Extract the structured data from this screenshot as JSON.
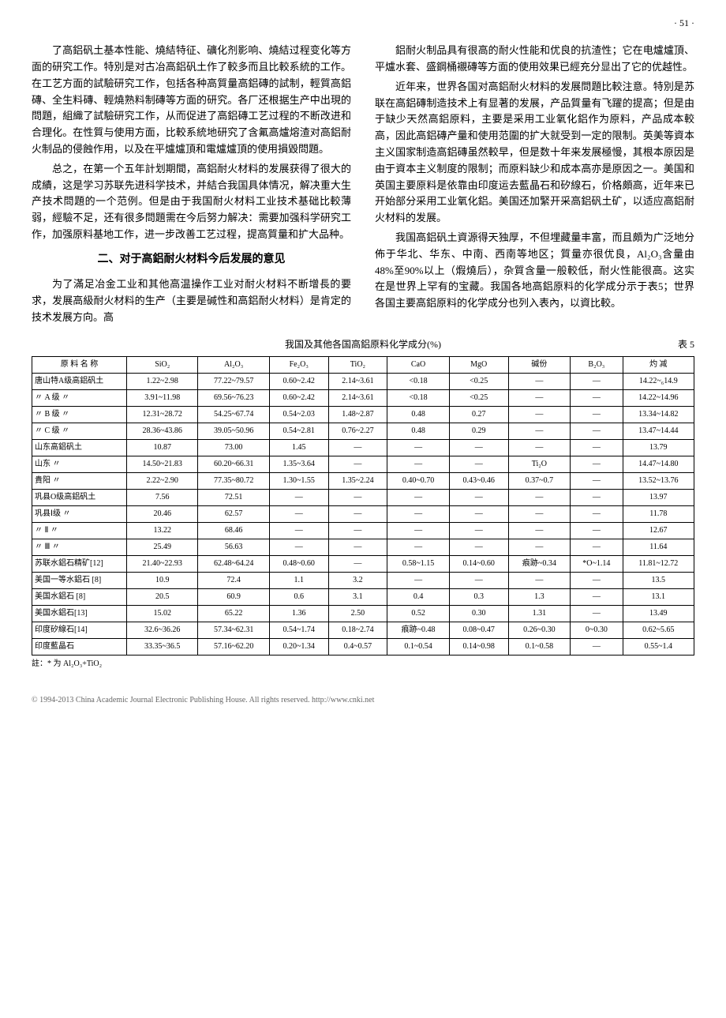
{
  "page_number": "· 51 ·",
  "left_paras": [
    "了高鋁矾土基本性能、燒結特征、礦化剂影响、燒結过程变化等方面的研究工作。特別是对古冶高鋁矾土作了較多而且比較系統的工作。在工艺方面的試驗研究工作，包括各种高質量高鋁磚的試制，輕質高鋁磚、全生料磚、輕燒熟料制磚等方面的研究。各厂还根据生产中出現的問題，組織了試驗研究工作，从而促进了高鋁磚工艺过程的不断改进和合理化。在性質与使用方面，比較系統地研究了含氟高爐熔渣对高鋁耐火制品的侵蝕作用，以及在平爐爐頂和電爐爐頂的使用損毀問題。",
    "总之，在第一个五年計划期間，高鋁耐火材料的发展获得了很大的成績，这是学习苏联先进科学技术，并結合我国具体情况，解决重大生产技术問題的一个范例。但是由于我国耐火材料工业技术基础比較薄弱，經驗不足，还有很多問題需在今后努力解决：需要加强科学研究工作，加强原料基地工作，进一步改善工艺过程，提高質量和扩大品种。"
  ],
  "section2_heading": "二、对于高鋁耐火材料今后发展的意见",
  "left_paras2": [
    "为了滿足冶金工业和其他高温操作工业对耐火材料不断增長的要求，发展高級耐火材料的生产（主要是碱性和高鋁耐火材料）是肯定的技术发展方向。高"
  ],
  "right_paras": [
    "鋁耐火制品具有很高的耐火性能和优良的抗渣性；它在电爐爐頂、平爐水套、盛鋼桶襯磚等方面的使用效果已經充分显出了它的优越性。",
    "近年来，世界各国对高鋁耐火材料的发展問題比較注意。特別是苏联在高鋁磚制造技术上有显著的发展，产品質量有飞躍的提高；但是由于缺少天然高鋁原料，主要是采用工业氧化鋁作为原料，产品成本較高，因此高鋁磚产量和使用范圍的扩大就受到一定的限制。英美等資本主义国家制造高鋁磚虽然較早，但是数十年来发展極慢，其根本原因是由于資本主义制度的限制；而原料缺少和成本高亦是原因之一。美国和英国主要原料是依靠由印度运去藍晶石和矽線石，价格頗高，近年来已开始部分采用工业氧化鋁。美国还加緊开采高鋁矾土矿，以适应高鋁耐火材料的发展。",
    "我国高鋁矾土資源得天独厚，不但埋藏量丰富，而且頗为广泛地分佈于华北、华东、中南、西南等地区；質量亦很优良，Al₂O₃含量由48%至90%以上（煆燒后），杂質含量一般較低，耐火性能很高。这实在是世界上罕有的宝藏。我国各地高鋁原料的化学成分示于表5；世界各国主要高鋁原料的化学成分也列入表內，以資比較。"
  ],
  "table_caption": "我国及其他各国高鋁原料化学成分(%)",
  "table_number": "表 5",
  "table": {
    "headers": [
      "原 料 名 称",
      "SiO₂",
      "Al₂O₃",
      "Fe₂O₃",
      "TiO₂",
      "CaO",
      "MgO",
      "碱份",
      "B₂O₃",
      "灼 减"
    ],
    "rows": [
      [
        "唐山特A级高鋁矾土",
        "1.22~2.98",
        "77.22~79.57",
        "0.60~2.42",
        "2.14~3.61",
        "<0.18",
        "<0.25",
        "—",
        "—",
        "14.22~₆14.9"
      ],
      [
        "〃 A 级 〃",
        "3.91~11.98",
        "69.56~76.23",
        "0.60~2.42",
        "2.14~3.61",
        "<0.18",
        "<0.25",
        "—",
        "—",
        "14.22~14.96"
      ],
      [
        "〃 B 级 〃",
        "12.31~28.72",
        "54.25~67.74",
        "0.54~2.03",
        "1.48~2.87",
        "0.48",
        "0.27",
        "—",
        "—",
        "13.34~14.82"
      ],
      [
        "〃 C 级 〃",
        "28.36~43.86",
        "39.05~50.96",
        "0.54~2.81",
        "0.76~2.27",
        "0.48",
        "0.29",
        "—",
        "—",
        "13.47~14.44"
      ],
      [
        "山东高鋁矾土",
        "10.87",
        "73.00",
        "1.45",
        "—",
        "—",
        "—",
        "—",
        "—",
        "13.79"
      ],
      [
        "山东 〃",
        "14.50~21.83",
        "60.20~66.31",
        "1.35~3.64",
        "—",
        "—",
        "—",
        "Ti₂O",
        "—",
        "14.47~14.80"
      ],
      [
        "貴阳 〃",
        "2.22~2.90",
        "77.35~80.72",
        "1.30~1.55",
        "1.35~2.24",
        "0.40~0.70",
        "0.43~0.46",
        "0.37~0.7",
        "—",
        "13.52~13.76"
      ],
      [
        "巩县O级高鋁矾土",
        "7.56",
        "72.51",
        "—",
        "—",
        "—",
        "—",
        "—",
        "—",
        "13.97"
      ],
      [
        "巩县Ⅰ级 〃",
        "20.46",
        "62.57",
        "—",
        "—",
        "—",
        "—",
        "—",
        "—",
        "11.78"
      ],
      [
        "〃 Ⅱ 〃",
        "13.22",
        "68.46",
        "—",
        "—",
        "—",
        "—",
        "—",
        "—",
        "12.67"
      ],
      [
        "〃 Ⅲ 〃",
        "25.49",
        "56.63",
        "—",
        "—",
        "—",
        "—",
        "—",
        "—",
        "11.64"
      ],
      [
        "苏联水鋁石精矿[12]",
        "21.40~22.93",
        "62.48~64.24",
        "0.48~0.60",
        "—",
        "0.58~1.15",
        "0.14~0.60",
        "痕跡~0.34",
        "*O~1.14",
        "11.81~12.72"
      ],
      [
        "美国一等水鋁石 [8]",
        "10.9",
        "72.4",
        "1.1",
        "3.2",
        "—",
        "—",
        "—",
        "—",
        "13.5"
      ],
      [
        "美国水鋁石 [8]",
        "20.5",
        "60.9",
        "0.6",
        "3.1",
        "0.4",
        "0.3",
        "1.3",
        "—",
        "13.1"
      ],
      [
        "美国水鋁石[13]",
        "15.02",
        "65.22",
        "1.36",
        "2.50",
        "0.52",
        "0.30",
        "1.31",
        "—",
        "13.49"
      ],
      [
        "印度矽線石[14]",
        "32.6~36.26",
        "57.34~62.31",
        "0.54~1.74",
        "0.18~2.74",
        "痕跡~0.48",
        "0.08~0.47",
        "0.26~0.30",
        "0~0.30",
        "0.62~5.65"
      ],
      [
        "印度藍晶石",
        "33.35~36.5",
        "57.16~62.20",
        "0.20~1.34",
        "0.4~0.57",
        "0.1~0.54",
        "0.14~0.98",
        "0.1~0.58",
        "—",
        "0.55~1.4"
      ]
    ]
  },
  "table_note": "註：* 为 Al₂O₃+TiO₂",
  "footer": "© 1994-2013 China Academic Journal Electronic Publishing House. All rights reserved.   http://www.cnki.net"
}
